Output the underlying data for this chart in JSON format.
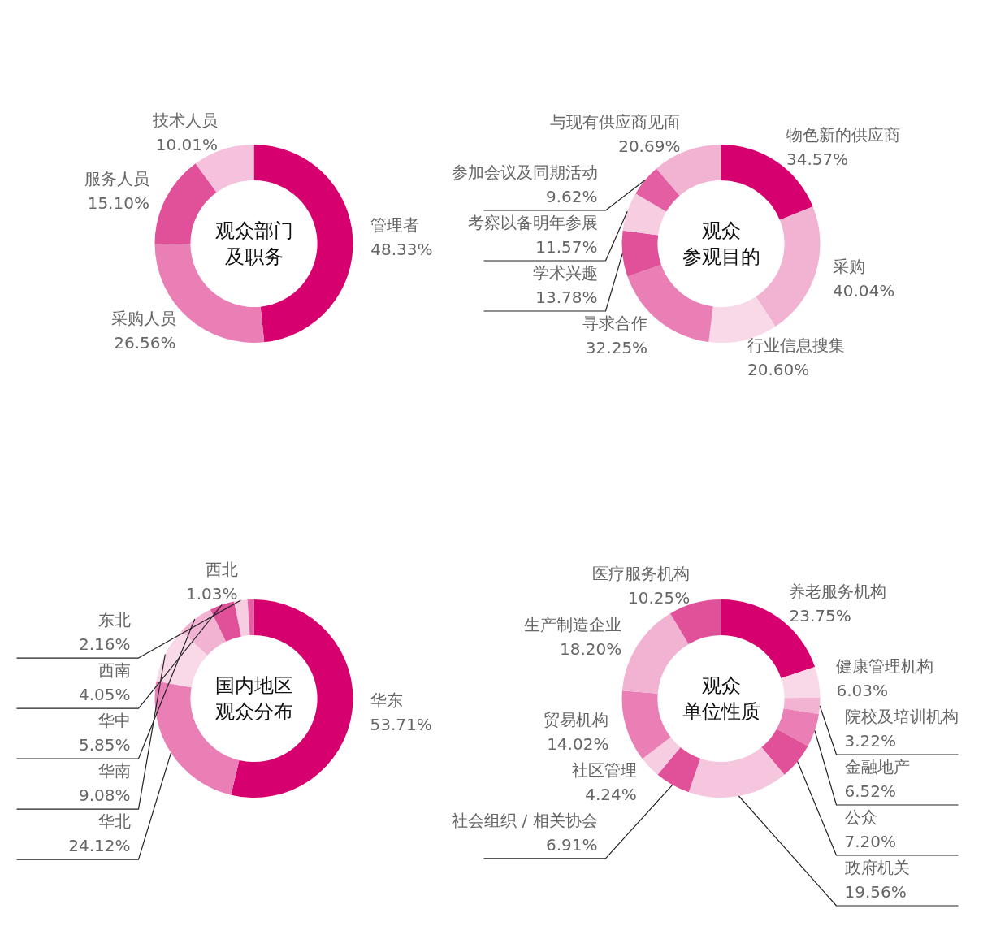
{
  "chart_data": [
    {
      "type": "donut",
      "title": "观众部门",
      "subtitle": "及职务",
      "categories": [
        "管理者",
        "采购人员",
        "服务人员",
        "技术人员"
      ],
      "values": [
        48.33,
        26.56,
        15.1,
        10.01
      ],
      "value_labels": [
        "48.33%",
        "26.56%",
        "15.10%",
        "10.01%"
      ],
      "colors": [
        "#d6006e",
        "#e97fb5",
        "#e0519a",
        "#f5c1dc"
      ]
    },
    {
      "type": "donut",
      "title": "观众",
      "subtitle": "参观目的",
      "categories": [
        "物色新的供应商",
        "采购",
        "行业信息搜集",
        "寻求合作",
        "学术兴趣",
        "考察以备明年参展",
        "参加会议及同期活动",
        "与现有供应商见面"
      ],
      "values": [
        34.57,
        40.04,
        20.6,
        32.25,
        13.78,
        11.57,
        9.62,
        20.69
      ],
      "value_labels": [
        "34.57%",
        "40.04%",
        "20.60%",
        "32.25%",
        "13.78%",
        "11.57%",
        "9.62%",
        "20.69%"
      ],
      "colors": [
        "#d6006e",
        "#f2b3d3",
        "#f9d9e8",
        "#e97fb5",
        "#e0519a",
        "#f7cde2",
        "#e45ea3",
        "#f2b3d3"
      ]
    },
    {
      "type": "donut",
      "title": "国内地区",
      "subtitle": "观众分布",
      "categories": [
        "华东",
        "华北",
        "华南",
        "华中",
        "西南",
        "东北",
        "西北"
      ],
      "values": [
        53.71,
        24.12,
        9.08,
        5.85,
        4.05,
        2.16,
        1.03
      ],
      "value_labels": [
        "53.71%",
        "24.12%",
        "9.08%",
        "5.85%",
        "4.05%",
        "2.16%",
        "1.03%"
      ],
      "colors": [
        "#d6006e",
        "#e97fb5",
        "#f9d9e8",
        "#f2b3d3",
        "#e0519a",
        "#f7cde2",
        "#e45ea3"
      ]
    },
    {
      "type": "donut",
      "title": "观众",
      "subtitle": "单位性质",
      "categories": [
        "养老服务机构",
        "健康管理机构",
        "院校及培训机构",
        "金融地产",
        "公众",
        "政府机关",
        "社会组织 / 相关协会",
        "社区管理",
        "贸易机构",
        "生产制造企业",
        "医疗服务机构"
      ],
      "values": [
        23.75,
        6.03,
        3.22,
        6.52,
        7.2,
        19.56,
        6.91,
        4.24,
        14.02,
        18.2,
        10.25
      ],
      "value_labels": [
        "23.75%",
        "6.03%",
        "3.22%",
        "6.52%",
        "7.20%",
        "19.56%",
        "6.91%",
        "4.24%",
        "14.02%",
        "18.20%",
        "10.25%"
      ],
      "colors": [
        "#d6006e",
        "#f9d9e8",
        "#f2b3d3",
        "#e97fb5",
        "#e0519a",
        "#f5c6dd",
        "#e0519a",
        "#f7cde2",
        "#e97fb5",
        "#f2b3d3",
        "#e0519a"
      ]
    }
  ]
}
